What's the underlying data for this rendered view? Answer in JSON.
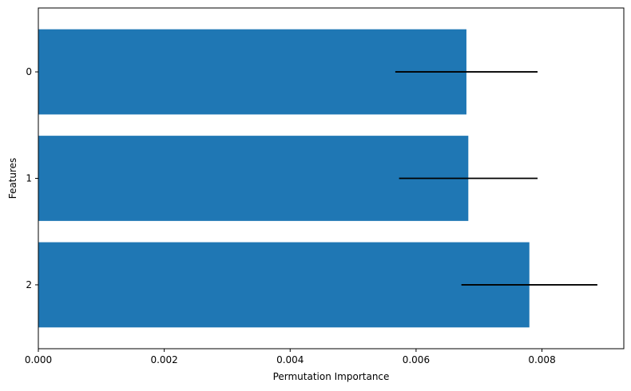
{
  "chart_data": {
    "type": "bar",
    "orientation": "horizontal",
    "categories": [
      "0",
      "1",
      "2"
    ],
    "values": [
      0.0068,
      0.00683,
      0.0078
    ],
    "error": [
      0.00113,
      0.0011,
      0.00108
    ],
    "xlabel": "Permutation Importance",
    "ylabel": "Features",
    "xlim": [
      0,
      0.0093
    ],
    "xticks": [
      0.0,
      0.002,
      0.004,
      0.006,
      0.008
    ],
    "xtick_labels": [
      "0.000",
      "0.002",
      "0.004",
      "0.006",
      "0.008"
    ],
    "grid": false,
    "bar_color": "#1f77b4",
    "error_color": "#000000"
  }
}
